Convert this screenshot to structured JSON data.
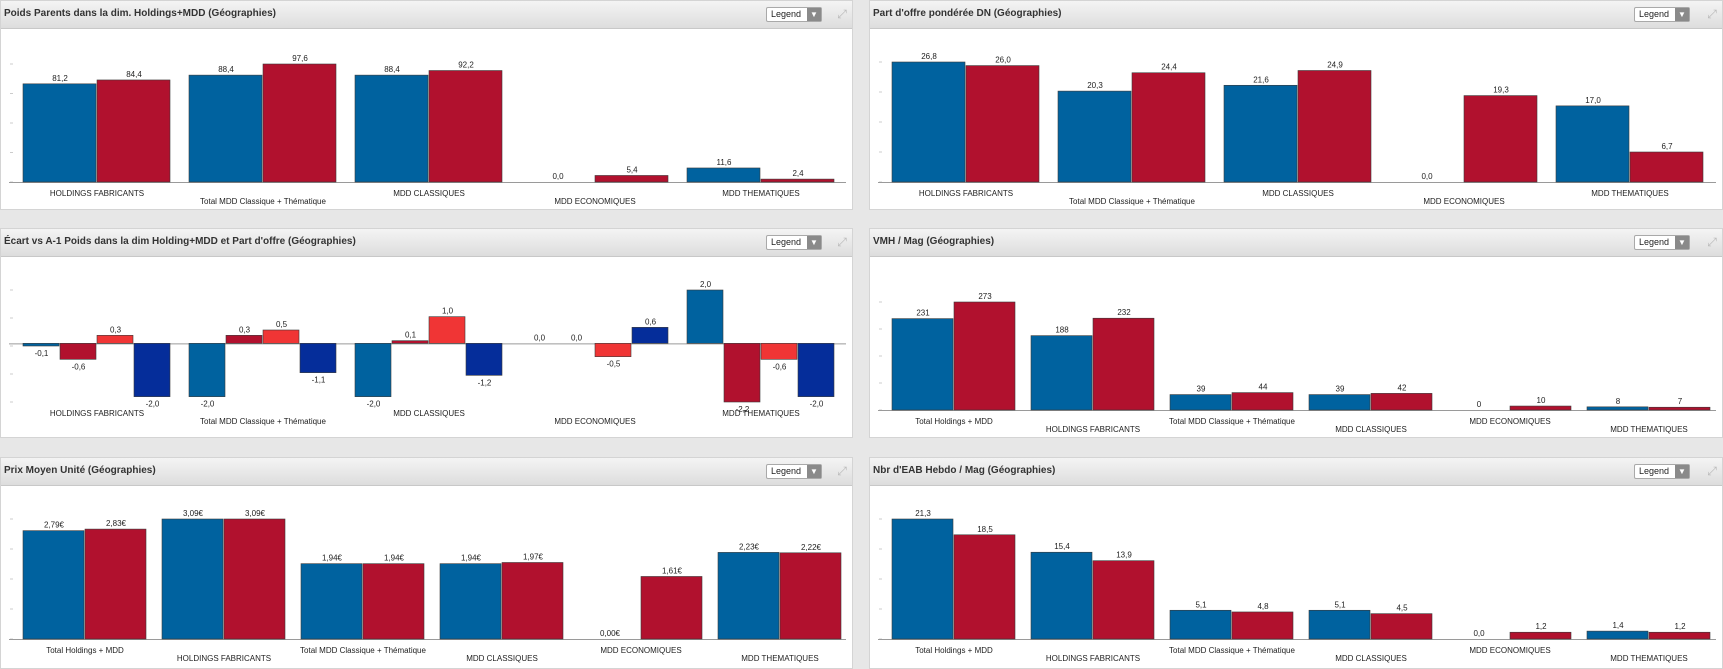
{
  "legend_label": "Legend",
  "colors": {
    "blue": "#00629f",
    "crimson": "#b1112e",
    "red": "#f03535",
    "navy": "#052d9a"
  },
  "chart_data": [
    {
      "id": "p1",
      "type": "bar",
      "title": "Poids Parents dans la dim. Holdings+MDD (Géographies)",
      "categories": [
        "HOLDINGS FABRICANTS",
        "Total MDD Classique + Thématique",
        "MDD CLASSIQUES",
        "MDD ECONOMIQUES",
        "MDD THEMATIQUES"
      ],
      "series": [
        {
          "values": [
            81.2,
            88.4,
            88.4,
            0.0,
            11.6
          ],
          "labels": [
            "81,2",
            "88,4",
            "88,4",
            "0,0",
            "11,6"
          ],
          "colors": [
            "blue",
            "blue",
            "blue",
            "blue",
            "blue"
          ]
        },
        {
          "values": [
            84.4,
            97.6,
            92.2,
            5.4,
            2.4
          ],
          "labels": [
            "84,4",
            "97,6",
            "92,2",
            "5,4",
            "2,4"
          ],
          "colors": [
            "crimson",
            "crimson",
            "crimson",
            "crimson",
            "crimson"
          ]
        }
      ],
      "ylim": [
        0,
        97.6
      ]
    },
    {
      "id": "p2",
      "type": "bar",
      "title": "Part d'offre pondérée DN (Géographies)",
      "categories": [
        "HOLDINGS FABRICANTS",
        "Total MDD Classique + Thématique",
        "MDD CLASSIQUES",
        "MDD ECONOMIQUES",
        "MDD THEMATIQUES"
      ],
      "series": [
        {
          "values": [
            26.8,
            20.3,
            21.6,
            0.0,
            17.0
          ],
          "labels": [
            "26,8",
            "20,3",
            "21,6",
            "0,0",
            "17,0"
          ],
          "colors": [
            "blue",
            "blue",
            "blue",
            "blue",
            "blue"
          ]
        },
        {
          "values": [
            26.0,
            24.4,
            24.9,
            19.3,
            6.7
          ],
          "labels": [
            "26,0",
            "24,4",
            "24,9",
            "19,3",
            "6,7"
          ],
          "colors": [
            "crimson",
            "crimson",
            "crimson",
            "crimson",
            "crimson"
          ]
        }
      ],
      "ylim": [
        0,
        26.8
      ]
    },
    {
      "id": "p3",
      "type": "bar",
      "title": "Écart vs A-1 Poids dans la dim Holding+MDD et Part d'offre (Géographies)",
      "categories": [
        "HOLDINGS FABRICANTS",
        "Total MDD Classique + Thématique",
        "MDD CLASSIQUES",
        "MDD ECONOMIQUES",
        "MDD THEMATIQUES"
      ],
      "series": [
        {
          "values": [
            -0.1,
            -2.0,
            -2.0,
            0.0,
            2.0
          ],
          "labels": [
            "-0,1",
            "-2,0",
            "-2,0",
            "0,0",
            "2,0"
          ],
          "colors": [
            "blue",
            "blue",
            "blue",
            "blue",
            "blue"
          ]
        },
        {
          "values": [
            -0.6,
            0.3,
            0.1,
            0.0,
            -2.2
          ],
          "labels": [
            "-0,6",
            "0,3",
            "0,1",
            "0,0",
            "-2,2"
          ],
          "colors": [
            "crimson",
            "crimson",
            "crimson",
            "crimson",
            "crimson"
          ]
        },
        {
          "values": [
            0.3,
            0.5,
            1.0,
            -0.5,
            -0.6
          ],
          "labels": [
            "0,3",
            "0,5",
            "1,0",
            "-0,5",
            "-0,6"
          ],
          "colors": [
            "red",
            "red",
            "red",
            "red",
            "red"
          ]
        },
        {
          "values": [
            -2.0,
            -1.1,
            -1.2,
            0.6,
            -2.0
          ],
          "labels": [
            "-2,0",
            "-1,1",
            "-1,2",
            "0,6",
            "-2,0"
          ],
          "colors": [
            "navy",
            "navy",
            "navy",
            "navy",
            "navy"
          ]
        }
      ],
      "ylim": [
        -2.2,
        2.0
      ]
    },
    {
      "id": "p4",
      "type": "bar",
      "title": "VMH / Mag (Géographies)",
      "categories": [
        "Total Holdings + MDD",
        "HOLDINGS FABRICANTS",
        "Total MDD Classique + Thématique",
        "MDD CLASSIQUES",
        "MDD ECONOMIQUES",
        "MDD THEMATIQUES"
      ],
      "series": [
        {
          "values": [
            231,
            188,
            39,
            39,
            0,
            8
          ],
          "labels": [
            "231",
            "188",
            "39",
            "39",
            "0",
            "8"
          ],
          "colors": [
            "blue",
            "blue",
            "blue",
            "blue",
            "blue",
            "blue"
          ]
        },
        {
          "values": [
            273,
            232,
            44,
            42,
            10,
            7
          ],
          "labels": [
            "273",
            "232",
            "44",
            "42",
            "10",
            "7"
          ],
          "colors": [
            "crimson",
            "crimson",
            "crimson",
            "crimson",
            "crimson",
            "crimson"
          ]
        }
      ],
      "ylim": [
        0,
        273
      ]
    },
    {
      "id": "p5",
      "type": "bar",
      "title": "Prix Moyen Unité (Géographies)",
      "categories": [
        "Total Holdings + MDD",
        "HOLDINGS FABRICANTS",
        "Total MDD Classique + Thématique",
        "MDD CLASSIQUES",
        "MDD ECONOMIQUES",
        "MDD THEMATIQUES"
      ],
      "series": [
        {
          "values": [
            2.79,
            3.09,
            1.94,
            1.94,
            0.0,
            2.23
          ],
          "labels": [
            "2,79€",
            "3,09€",
            "1,94€",
            "1,94€",
            "0,00€",
            "2,23€"
          ],
          "colors": [
            "blue",
            "blue",
            "blue",
            "blue",
            "blue",
            "blue"
          ]
        },
        {
          "values": [
            2.83,
            3.09,
            1.94,
            1.97,
            1.61,
            2.22
          ],
          "labels": [
            "2,83€",
            "3,09€",
            "1,94€",
            "1,97€",
            "1,61€",
            "2,22€"
          ],
          "colors": [
            "crimson",
            "crimson",
            "crimson",
            "crimson",
            "crimson",
            "crimson"
          ]
        }
      ],
      "ylim": [
        0,
        3.09
      ]
    },
    {
      "id": "p6",
      "type": "bar",
      "title": "Nbr d'EAB Hebdo / Mag (Géographies)",
      "categories": [
        "Total Holdings + MDD",
        "HOLDINGS FABRICANTS",
        "Total MDD Classique + Thématique",
        "MDD CLASSIQUES",
        "MDD ECONOMIQUES",
        "MDD THEMATIQUES"
      ],
      "series": [
        {
          "values": [
            21.3,
            15.4,
            5.1,
            5.1,
            0.0,
            1.4
          ],
          "labels": [
            "21,3",
            "15,4",
            "5,1",
            "5,1",
            "0,0",
            "1,4"
          ],
          "colors": [
            "blue",
            "blue",
            "blue",
            "blue",
            "blue",
            "blue"
          ]
        },
        {
          "values": [
            18.5,
            13.9,
            4.8,
            4.5,
            1.2,
            1.2
          ],
          "labels": [
            "18,5",
            "13,9",
            "4,8",
            "4,5",
            "1,2",
            "1,2"
          ],
          "colors": [
            "crimson",
            "crimson",
            "crimson",
            "crimson",
            "crimson",
            "crimson"
          ]
        }
      ],
      "ylim": [
        0,
        21.3
      ]
    }
  ]
}
